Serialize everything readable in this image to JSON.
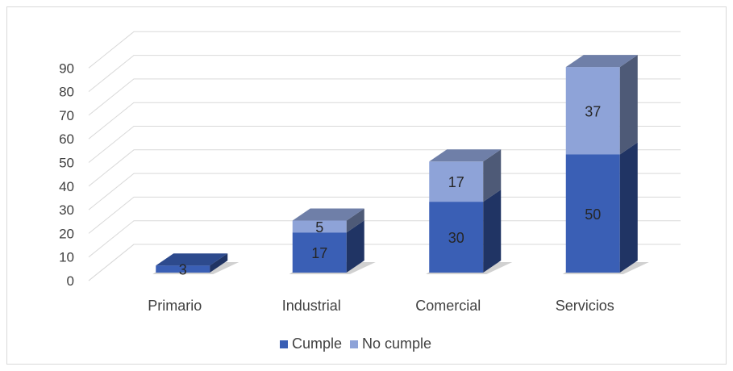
{
  "chart_data": {
    "type": "bar",
    "stacked": true,
    "three_d": true,
    "title": "",
    "xlabel": "",
    "ylabel": "",
    "categories": [
      "Primario",
      "Industrial",
      "Comercial",
      "Servicios"
    ],
    "series": [
      {
        "name": "Cumple",
        "values": [
          3,
          17,
          30,
          50
        ],
        "color": "#3a5fb5"
      },
      {
        "name": "No cumple",
        "values": [
          0,
          5,
          17,
          37
        ],
        "color": "#8ea3d8"
      }
    ],
    "data_labels": [
      [
        "3",
        "17",
        "30",
        "50"
      ],
      [
        "",
        "5",
        "17",
        "37"
      ]
    ],
    "ylim": [
      0,
      90
    ],
    "yticks": [
      "0",
      "10",
      "20",
      "30",
      "40",
      "50",
      "60",
      "70",
      "80",
      "90"
    ],
    "grid": true,
    "legend_position": "bottom"
  }
}
